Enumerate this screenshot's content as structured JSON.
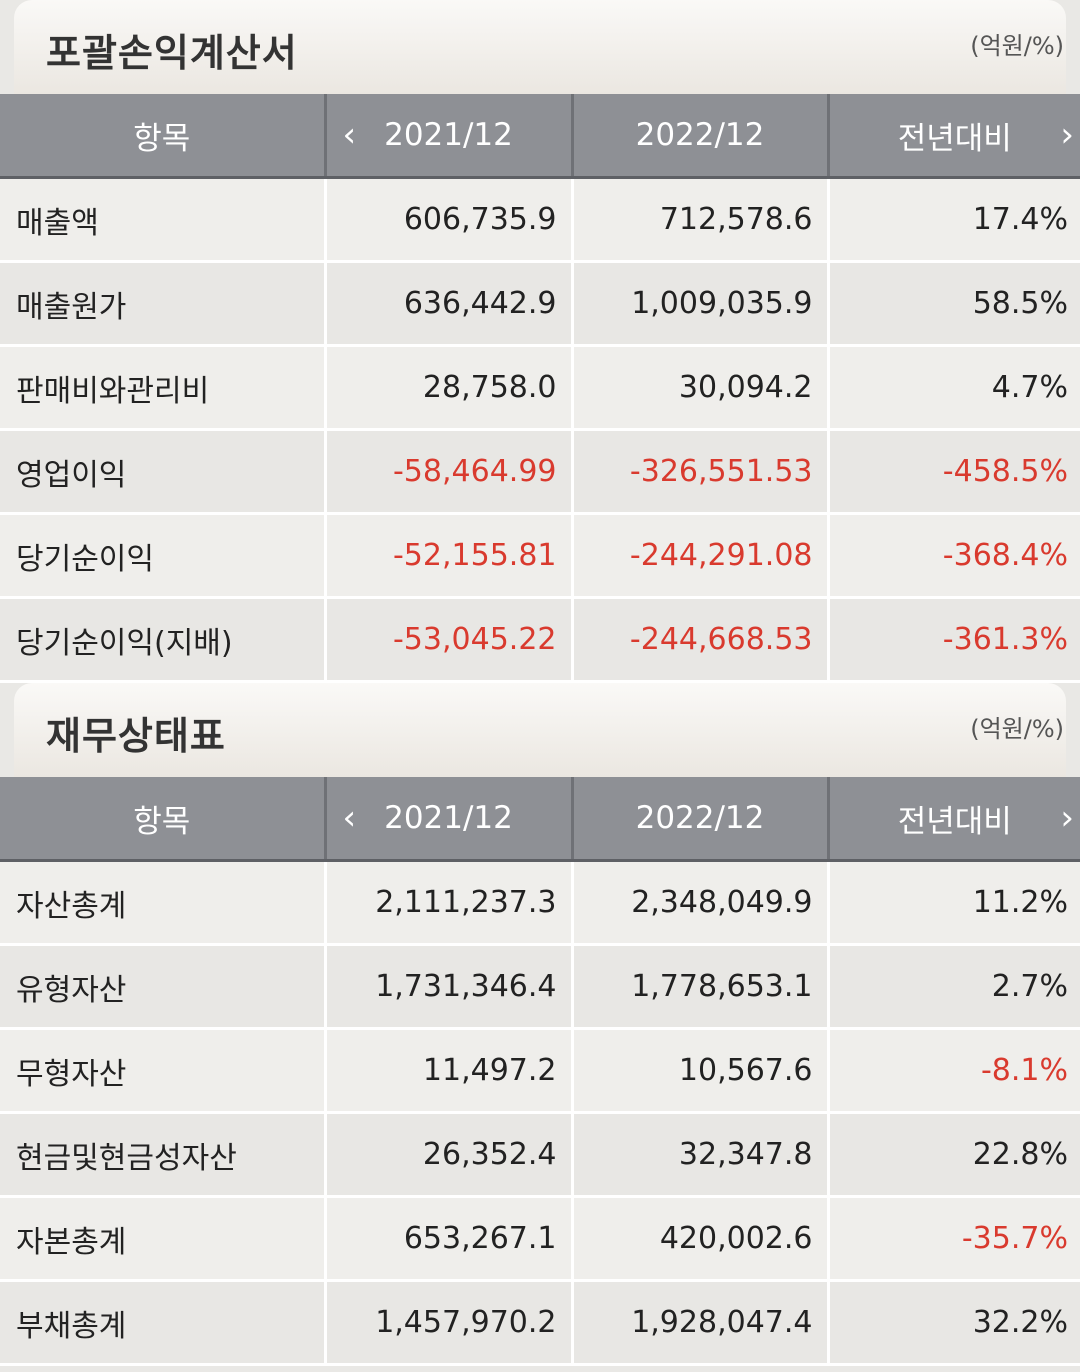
{
  "income_statement": {
    "title": "포괄손익계산서",
    "unit": "(억원/%)",
    "headers": [
      "항목",
      "2021/12",
      "2022/12",
      "전년대비"
    ],
    "rows": [
      {
        "item": "매출액",
        "y2021": "606,735.9",
        "y2022": "712,578.6",
        "yoy": "17.4%",
        "neg": [
          false,
          false,
          false
        ]
      },
      {
        "item": "매출원가",
        "y2021": "636,442.9",
        "y2022": "1,009,035.9",
        "yoy": "58.5%",
        "neg": [
          false,
          false,
          false
        ]
      },
      {
        "item": "판매비와관리비",
        "y2021": "28,758.0",
        "y2022": "30,094.2",
        "yoy": "4.7%",
        "neg": [
          false,
          false,
          false
        ]
      },
      {
        "item": "영업이익",
        "y2021": "-58,464.99",
        "y2022": "-326,551.53",
        "yoy": "-458.5%",
        "neg": [
          true,
          true,
          true
        ]
      },
      {
        "item": "당기순이익",
        "y2021": "-52,155.81",
        "y2022": "-244,291.08",
        "yoy": "-368.4%",
        "neg": [
          true,
          true,
          true
        ]
      },
      {
        "item": "당기순이익(지배)",
        "y2021": "-53,045.22",
        "y2022": "-244,668.53",
        "yoy": "-361.3%",
        "neg": [
          true,
          true,
          true
        ]
      }
    ]
  },
  "balance_sheet": {
    "title": "재무상태표",
    "unit": "(억원/%)",
    "headers": [
      "항목",
      "2021/12",
      "2022/12",
      "전년대비"
    ],
    "rows": [
      {
        "item": "자산총계",
        "y2021": "2,111,237.3",
        "y2022": "2,348,049.9",
        "yoy": "11.2%",
        "neg": [
          false,
          false,
          false
        ]
      },
      {
        "item": "유형자산",
        "y2021": "1,731,346.4",
        "y2022": "1,778,653.1",
        "yoy": "2.7%",
        "neg": [
          false,
          false,
          false
        ]
      },
      {
        "item": "무형자산",
        "y2021": "11,497.2",
        "y2022": "10,567.6",
        "yoy": "-8.1%",
        "neg": [
          false,
          false,
          true
        ]
      },
      {
        "item": "현금및현금성자산",
        "y2021": "26,352.4",
        "y2022": "32,347.8",
        "yoy": "22.8%",
        "neg": [
          false,
          false,
          false
        ]
      },
      {
        "item": "자본총계",
        "y2021": "653,267.1",
        "y2022": "420,002.6",
        "yoy": "-35.7%",
        "neg": [
          false,
          false,
          true
        ]
      },
      {
        "item": "부채총계",
        "y2021": "1,457,970.2",
        "y2022": "1,928,047.4",
        "yoy": "32.2%",
        "neg": [
          false,
          false,
          false
        ]
      }
    ]
  },
  "colors": {
    "negative": "#d93a2e",
    "header_bg": "#8e9095"
  },
  "icons": {
    "prev": "chevron-left-icon",
    "next": "chevron-right-icon"
  }
}
